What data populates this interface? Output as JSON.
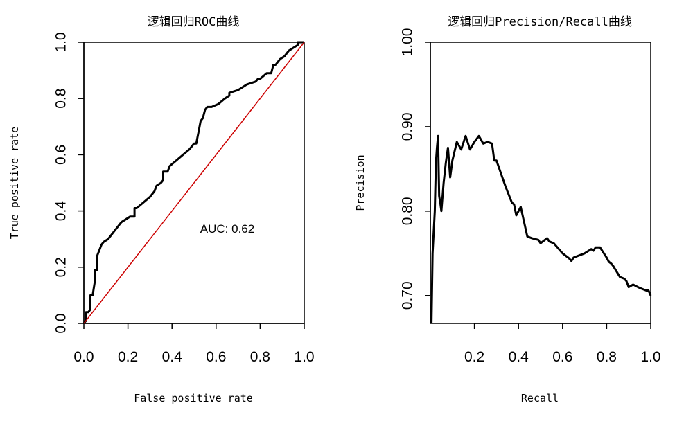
{
  "chart_data": [
    {
      "type": "line",
      "title": "逻辑回归ROC曲线",
      "xlabel": "False positive rate",
      "ylabel": "True positive rate",
      "xlim": [
        0,
        1
      ],
      "ylim": [
        0,
        1
      ],
      "x_ticks": [
        "0.0",
        "0.2",
        "0.4",
        "0.6",
        "0.8",
        "1.0"
      ],
      "y_ticks": [
        "0.0",
        "0.2",
        "0.4",
        "0.6",
        "0.8",
        "1.0"
      ],
      "annotation": "AUC: 0.62",
      "grid": false,
      "series": [
        {
          "color": "#000000",
          "x": [
            0.0,
            0.01,
            0.01,
            0.02,
            0.03,
            0.03,
            0.04,
            0.05,
            0.05,
            0.06,
            0.06,
            0.07,
            0.08,
            0.09,
            0.11,
            0.14,
            0.17,
            0.21,
            0.23,
            0.23,
            0.24,
            0.27,
            0.3,
            0.32,
            0.33,
            0.35,
            0.36,
            0.36,
            0.38,
            0.39,
            0.42,
            0.45,
            0.48,
            0.5,
            0.51,
            0.52,
            0.53,
            0.54,
            0.55,
            0.56,
            0.58,
            0.61,
            0.64,
            0.66,
            0.66,
            0.7,
            0.74,
            0.78,
            0.79,
            0.8,
            0.83,
            0.85,
            0.86,
            0.87,
            0.89,
            0.91,
            0.93,
            0.95,
            0.97,
            0.97,
            0.99,
            1.0
          ],
          "y": [
            0.0,
            0.01,
            0.04,
            0.04,
            0.05,
            0.1,
            0.1,
            0.15,
            0.19,
            0.19,
            0.24,
            0.26,
            0.28,
            0.29,
            0.3,
            0.33,
            0.36,
            0.38,
            0.38,
            0.41,
            0.41,
            0.43,
            0.45,
            0.47,
            0.49,
            0.5,
            0.51,
            0.54,
            0.54,
            0.56,
            0.58,
            0.6,
            0.62,
            0.64,
            0.64,
            0.68,
            0.72,
            0.73,
            0.76,
            0.77,
            0.77,
            0.78,
            0.8,
            0.81,
            0.82,
            0.83,
            0.85,
            0.86,
            0.87,
            0.87,
            0.89,
            0.89,
            0.92,
            0.92,
            0.94,
            0.95,
            0.97,
            0.98,
            0.99,
            1.0,
            1.0,
            1.0
          ]
        },
        {
          "color": "#cc0000",
          "x": [
            0,
            1
          ],
          "y": [
            0,
            1
          ]
        }
      ]
    },
    {
      "type": "line",
      "title": "逻辑回归Precision/Recall曲线",
      "xlabel": "Recall",
      "ylabel": "Precision",
      "xlim": [
        0.0,
        1.0
      ],
      "ylim": [
        0.667,
        1.0
      ],
      "x_ticks": [
        "0.2",
        "0.4",
        "0.6",
        "0.8",
        "1.0"
      ],
      "y_ticks": [
        "0.70",
        "0.80",
        "0.90",
        "1.00"
      ],
      "grid": false,
      "series": [
        {
          "color": "#000000",
          "x": [
            0.005,
            0.01,
            0.02,
            0.025,
            0.03,
            0.035,
            0.04,
            0.045,
            0.05,
            0.06,
            0.07,
            0.08,
            0.09,
            0.1,
            0.12,
            0.14,
            0.16,
            0.18,
            0.2,
            0.22,
            0.24,
            0.26,
            0.28,
            0.29,
            0.3,
            0.34,
            0.37,
            0.38,
            0.39,
            0.41,
            0.44,
            0.46,
            0.49,
            0.5,
            0.53,
            0.54,
            0.56,
            0.6,
            0.63,
            0.64,
            0.65,
            0.7,
            0.73,
            0.74,
            0.75,
            0.77,
            0.8,
            0.81,
            0.82,
            0.83,
            0.86,
            0.88,
            0.89,
            0.9,
            0.92,
            0.95,
            0.96,
            0.98,
            0.99,
            1.0
          ],
          "y": [
            0.667,
            0.75,
            0.8,
            0.857,
            0.875,
            0.889,
            0.818,
            0.81,
            0.8,
            0.833,
            0.857,
            0.875,
            0.84,
            0.86,
            0.882,
            0.873,
            0.889,
            0.873,
            0.882,
            0.889,
            0.88,
            0.882,
            0.88,
            0.86,
            0.86,
            0.83,
            0.81,
            0.808,
            0.795,
            0.805,
            0.77,
            0.768,
            0.766,
            0.762,
            0.768,
            0.764,
            0.762,
            0.75,
            0.744,
            0.741,
            0.745,
            0.75,
            0.755,
            0.753,
            0.757,
            0.757,
            0.745,
            0.74,
            0.738,
            0.735,
            0.722,
            0.72,
            0.717,
            0.71,
            0.713,
            0.709,
            0.708,
            0.706,
            0.706,
            0.7
          ]
        }
      ]
    }
  ]
}
